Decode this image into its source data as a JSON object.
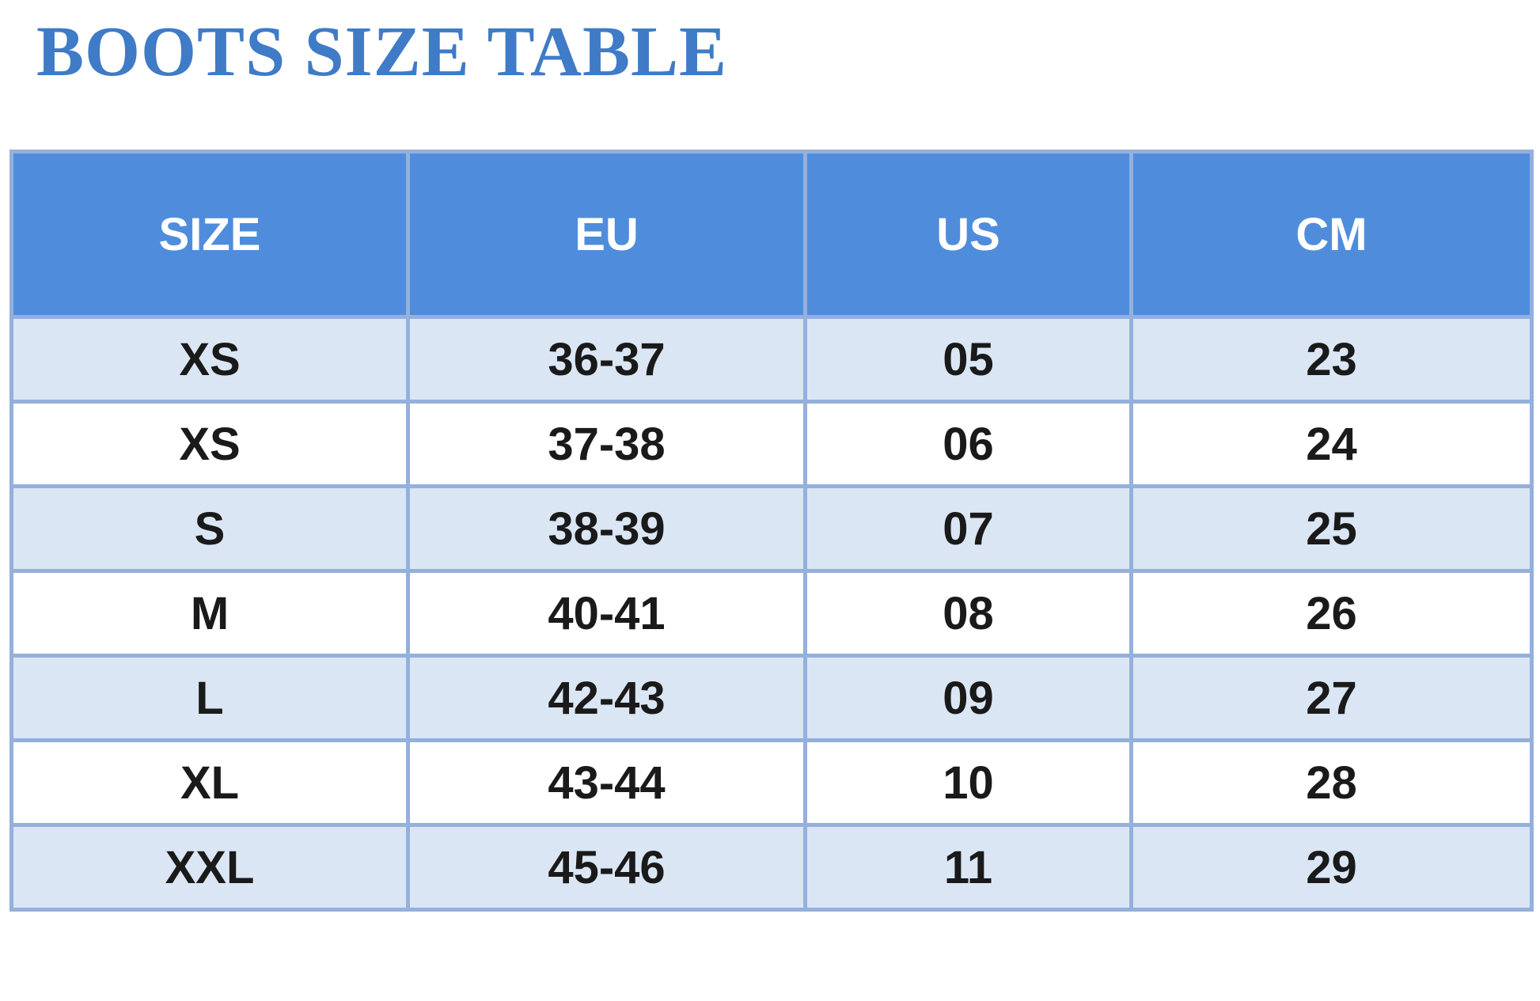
{
  "title": "BOOTS SIZE TABLE",
  "table": {
    "header": [
      "SIZE",
      "EU",
      "US",
      "CM"
    ],
    "rows": [
      [
        "XS",
        "36-37",
        "05",
        "23"
      ],
      [
        "XS",
        "37-38",
        "06",
        "24"
      ],
      [
        "S",
        "38-39",
        "07",
        "25"
      ],
      [
        "M",
        "40-41",
        "08",
        "26"
      ],
      [
        "L",
        "42-43",
        "09",
        "27"
      ],
      [
        "XL",
        "43-44",
        "10",
        "28"
      ],
      [
        "XXL",
        "45-46",
        "11",
        "29"
      ]
    ]
  }
}
